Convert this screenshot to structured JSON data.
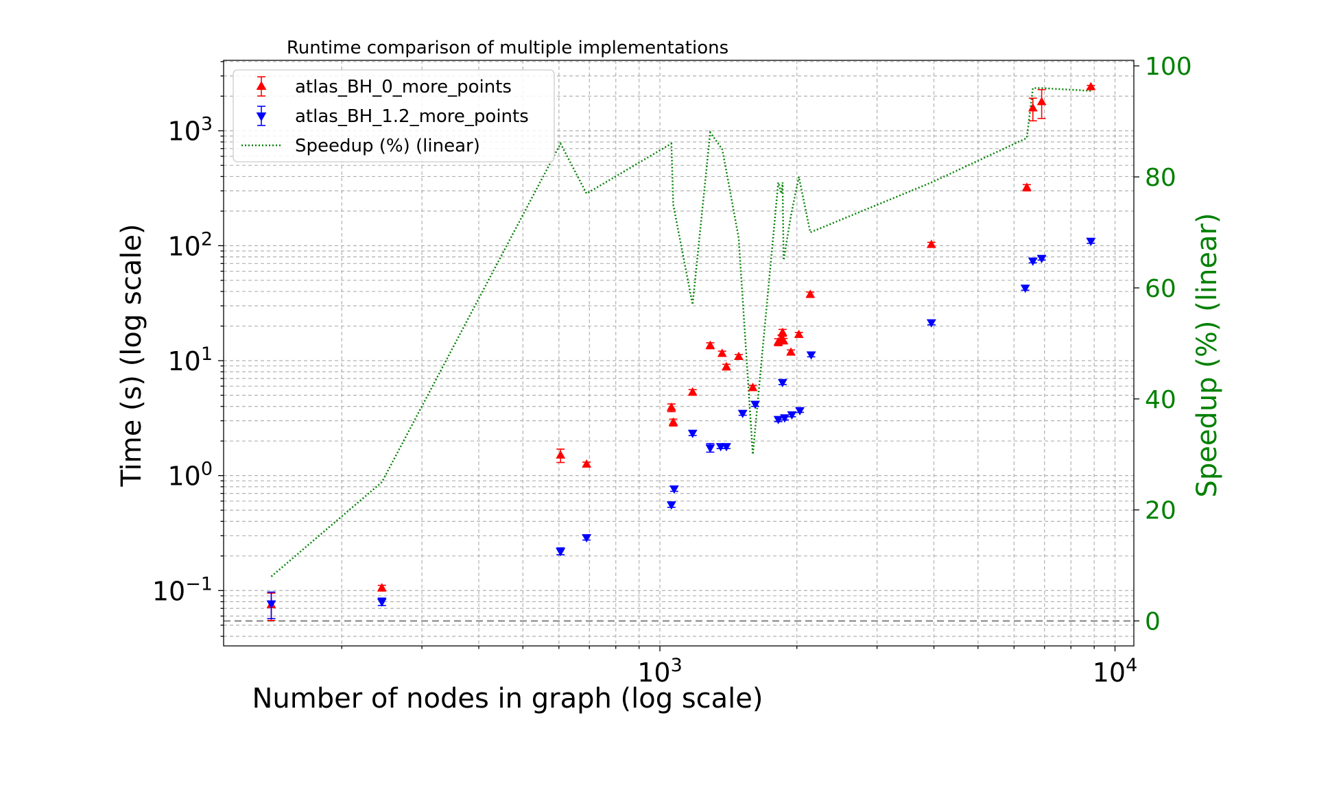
{
  "chart_data": {
    "type": "scatter",
    "title": "Runtime comparison of multiple implementations",
    "xlabel": "Number of nodes in graph (log scale)",
    "ylabel": "Time (s) (log scale)",
    "y2label": "Speedup (%) (linear)",
    "x_scale": "log",
    "y_scale": "log",
    "xlim": [
      110,
      11000
    ],
    "ylim": [
      0.033,
      4100
    ],
    "y2lim": [
      -4.5,
      101
    ],
    "x_ticks": [
      {
        "value": 1000,
        "base": "10",
        "exp": "3"
      },
      {
        "value": 10000,
        "base": "10",
        "exp": "4"
      }
    ],
    "y_ticks": [
      {
        "value": 0.1,
        "base": "10",
        "exp": "−1"
      },
      {
        "value": 1,
        "base": "10",
        "exp": "0"
      },
      {
        "value": 10,
        "base": "10",
        "exp": "1"
      },
      {
        "value": 100,
        "base": "10",
        "exp": "2"
      },
      {
        "value": 1000,
        "base": "10",
        "exp": "3"
      }
    ],
    "y2_ticks": [
      0,
      20,
      40,
      60,
      80,
      100
    ],
    "grid": true,
    "legend_position": "top-left",
    "colors": {
      "series_0": "#ff0000",
      "series_1": "#0000ff",
      "speedup": "#008000",
      "grid": "#b0b0b0",
      "reference_line": "#808080"
    },
    "reference_line": {
      "axis": "y2",
      "value": 0
    },
    "series": [
      {
        "name": "atlas_BH_0_more_points",
        "marker": "triangle-up",
        "points": [
          {
            "x": 140,
            "y": 0.075,
            "err": 0.02
          },
          {
            "x": 245,
            "y": 0.105,
            "err": 0.006
          },
          {
            "x": 605,
            "y": 1.5,
            "err": 0.2
          },
          {
            "x": 690,
            "y": 1.25,
            "err": 0.06
          },
          {
            "x": 1060,
            "y": 3.9,
            "err": 0.3
          },
          {
            "x": 1070,
            "y": 2.9,
            "err": 0.2
          },
          {
            "x": 1180,
            "y": 5.3,
            "err": 0.3
          },
          {
            "x": 1290,
            "y": 13.5,
            "err": 0.8
          },
          {
            "x": 1370,
            "y": 11.5,
            "err": 0.6
          },
          {
            "x": 1400,
            "y": 8.8,
            "err": 0.5
          },
          {
            "x": 1490,
            "y": 10.8,
            "err": 0.5
          },
          {
            "x": 1600,
            "y": 5.8,
            "err": 0.3
          },
          {
            "x": 1820,
            "y": 14.5,
            "err": 1.0
          },
          {
            "x": 1850,
            "y": 15.5,
            "err": 1.2
          },
          {
            "x": 1860,
            "y": 17.5,
            "err": 1.2
          },
          {
            "x": 1870,
            "y": 14.8,
            "err": 0.8
          },
          {
            "x": 1940,
            "y": 11.8,
            "err": 0.6
          },
          {
            "x": 2020,
            "y": 16.8,
            "err": 0.8
          },
          {
            "x": 2140,
            "y": 37.5,
            "err": 2.0
          },
          {
            "x": 3950,
            "y": 102,
            "err": 5
          },
          {
            "x": 6400,
            "y": 320,
            "err": 20
          },
          {
            "x": 6600,
            "y": 1570,
            "err": 350
          },
          {
            "x": 6900,
            "y": 1780,
            "err": 500
          },
          {
            "x": 8850,
            "y": 2400,
            "err": 80
          }
        ]
      },
      {
        "name": "atlas_BH_1.2_more_points",
        "marker": "triangle-down",
        "points": [
          {
            "x": 140,
            "y": 0.077,
            "err": 0.02
          },
          {
            "x": 245,
            "y": 0.08,
            "err": 0.006
          },
          {
            "x": 605,
            "y": 0.22,
            "err": 0.015
          },
          {
            "x": 690,
            "y": 0.29,
            "err": 0.015
          },
          {
            "x": 1060,
            "y": 0.56,
            "err": 0.03
          },
          {
            "x": 1075,
            "y": 0.77,
            "err": 0.04
          },
          {
            "x": 1180,
            "y": 2.35,
            "err": 0.12
          },
          {
            "x": 1290,
            "y": 1.75,
            "err": 0.15
          },
          {
            "x": 1360,
            "y": 1.8,
            "err": 0.08
          },
          {
            "x": 1400,
            "y": 1.8,
            "err": 0.08
          },
          {
            "x": 1520,
            "y": 3.5,
            "err": 0.15
          },
          {
            "x": 1620,
            "y": 4.2,
            "err": 0.2
          },
          {
            "x": 1820,
            "y": 3.1,
            "err": 0.15
          },
          {
            "x": 1860,
            "y": 6.5,
            "err": 0.3
          },
          {
            "x": 1880,
            "y": 3.2,
            "err": 0.15
          },
          {
            "x": 1950,
            "y": 3.4,
            "err": 0.15
          },
          {
            "x": 2030,
            "y": 3.7,
            "err": 0.15
          },
          {
            "x": 2150,
            "y": 11.3,
            "err": 0.5
          },
          {
            "x": 3950,
            "y": 21.5,
            "err": 1.0
          },
          {
            "x": 6350,
            "y": 43,
            "err": 2
          },
          {
            "x": 6600,
            "y": 74,
            "err": 3
          },
          {
            "x": 6900,
            "y": 78,
            "err": 3
          },
          {
            "x": 8850,
            "y": 110,
            "err": 5
          }
        ]
      },
      {
        "name": "Speedup (%) (linear)",
        "axis": "y2",
        "style": "dotted-line",
        "x": [
          140,
          245,
          605,
          690,
          1060,
          1070,
          1180,
          1290,
          1370,
          1400,
          1490,
          1600,
          1820,
          1850,
          1860,
          1870,
          1940,
          2020,
          2140,
          3950,
          6400,
          6600,
          6900,
          8850
        ],
        "values": [
          8,
          25,
          86,
          77,
          86,
          75,
          57,
          88,
          85,
          81,
          69,
          30,
          79,
          77,
          79,
          65,
          73,
          80,
          70,
          79,
          87,
          96,
          96,
          95.5
        ]
      }
    ]
  }
}
